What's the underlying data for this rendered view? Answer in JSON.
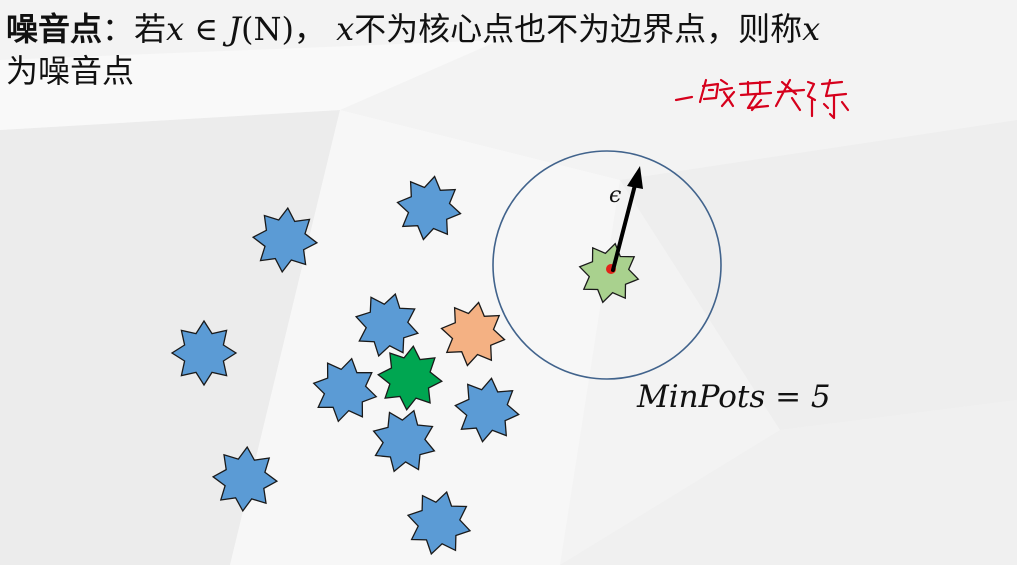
{
  "definition": {
    "term": "噪音点",
    "colon": "：",
    "if_word": "若",
    "var_x": "x",
    "element_of": " ∈ ",
    "set_name": "J",
    "set_arg": "(N)",
    "comma": "，",
    "neither_core_nor_border": "不为核心点也不为边界点，则称",
    "var_x2": "x",
    "tail": "为噪音点"
  },
  "annotation": {
    "handwritten_note": "一般要去除"
  },
  "diagram": {
    "epsilon_label": "ϵ",
    "minpts_label": "MinPots = 5",
    "colors": {
      "core_point": "#5b9bd5",
      "border_point": "#00a651",
      "other_point": "#f4b183",
      "noise_point": "#a9d18e",
      "neighborhood_circle": "#41638c",
      "center_dot": "#e2231a",
      "note_ink": "#d6001c"
    }
  }
}
